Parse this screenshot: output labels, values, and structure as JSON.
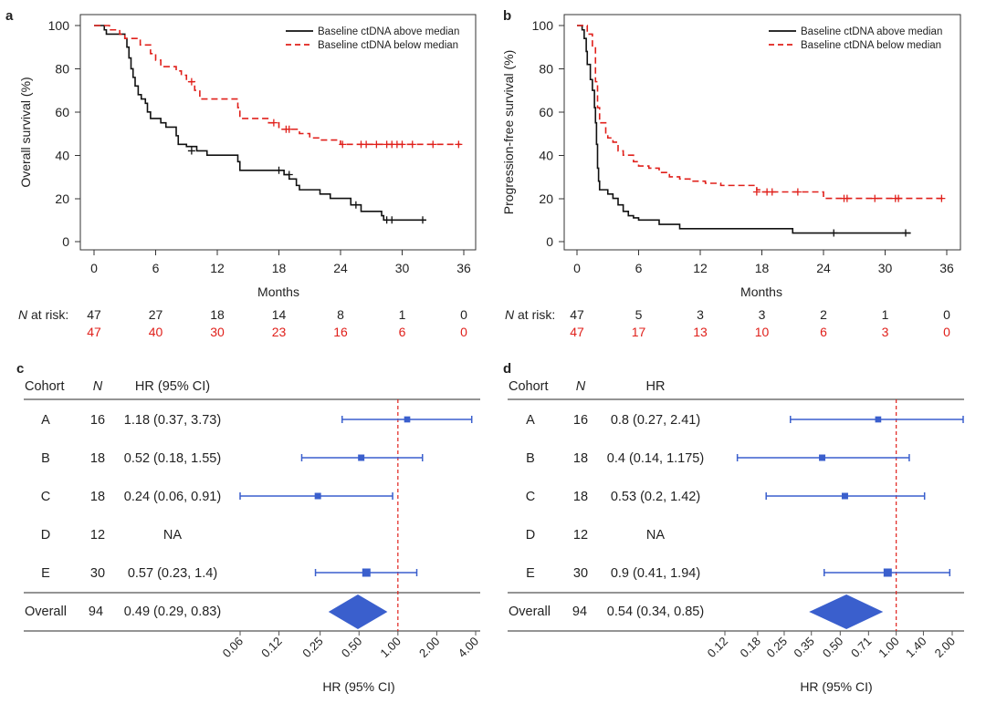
{
  "colors": {
    "above": "#111111",
    "below": "#e0201b",
    "forest": "#3a5fcd",
    "refline": "#e0201b"
  },
  "km": [
    {
      "letter": "a",
      "ylabel": "Overall survival (%)",
      "xlabel": "Months",
      "xticks": [
        "0",
        "6",
        "12",
        "18",
        "24",
        "30",
        "36"
      ],
      "yticks": [
        "0",
        "20",
        "40",
        "60",
        "80",
        "100"
      ],
      "legend": [
        "Baseline ctDNA above median",
        "Baseline ctDNA below median"
      ],
      "risk_label_n": "N",
      "risk_label_rest": " at risk:",
      "risk_above": [
        "47",
        "27",
        "18",
        "14",
        "8",
        "1",
        "0"
      ],
      "risk_below": [
        "47",
        "40",
        "30",
        "23",
        "16",
        "6",
        "0"
      ]
    },
    {
      "letter": "b",
      "ylabel": "Progression-free survival (%)",
      "xlabel": "Months",
      "xticks": [
        "0",
        "6",
        "12",
        "18",
        "24",
        "30",
        "36"
      ],
      "yticks": [
        "0",
        "20",
        "40",
        "60",
        "80",
        "100"
      ],
      "legend": [
        "Baseline ctDNA above median",
        "Baseline ctDNA below median"
      ],
      "risk_label_n": "N",
      "risk_label_rest": " at risk:",
      "risk_above": [
        "47",
        "5",
        "3",
        "3",
        "2",
        "1",
        "0"
      ],
      "risk_below": [
        "47",
        "17",
        "13",
        "10",
        "6",
        "3",
        "0"
      ]
    }
  ],
  "forest": [
    {
      "letter": "c",
      "headers": {
        "cohort": "Cohort",
        "n": "N",
        "hr": "HR (95% CI)"
      },
      "rows": [
        {
          "cohort": "A",
          "n": "16",
          "hr_text": "1.18 (0.37, 3.73)"
        },
        {
          "cohort": "B",
          "n": "18",
          "hr_text": "0.52 (0.18, 1.55)"
        },
        {
          "cohort": "C",
          "n": "18",
          "hr_text": "0.24 (0.06, 0.91)"
        },
        {
          "cohort": "D",
          "n": "12",
          "hr_text": "NA"
        },
        {
          "cohort": "E",
          "n": "30",
          "hr_text": "0.57 (0.23, 1.4)"
        }
      ],
      "overall": {
        "cohort": "Overall",
        "n": "94",
        "hr_text": "0.49 (0.29, 0.83)"
      },
      "xticks": [
        "0.06",
        "0.12",
        "0.25",
        "0.50",
        "1.00",
        "2.00",
        "4.00"
      ],
      "xlabel": "HR (95% CI)"
    },
    {
      "letter": "d",
      "headers": {
        "cohort": "Cohort",
        "n": "N",
        "hr": "HR"
      },
      "rows": [
        {
          "cohort": "A",
          "n": "16",
          "hr_text": "0.8 (0.27, 2.41)"
        },
        {
          "cohort": "B",
          "n": "18",
          "hr_text": "0.4 (0.14, 1.175)"
        },
        {
          "cohort": "C",
          "n": "18",
          "hr_text": "0.53 (0.2, 1.42)"
        },
        {
          "cohort": "D",
          "n": "12",
          "hr_text": "NA"
        },
        {
          "cohort": "E",
          "n": "30",
          "hr_text": "0.9 (0.41, 1.94)"
        }
      ],
      "overall": {
        "cohort": "Overall",
        "n": "94",
        "hr_text": "0.54 (0.34, 0.85)"
      },
      "xticks": [
        "0.12",
        "0.18",
        "0.25",
        "0.35",
        "0.50",
        "0.71",
        "1.00",
        "1.40",
        "2.00"
      ],
      "xlabel": "HR (95% CI)"
    }
  ],
  "chart_data": [
    {
      "type": "line",
      "panel": "a",
      "xlabel": "Months",
      "ylabel": "Overall survival (%)",
      "xlim": [
        0,
        36
      ],
      "ylim": [
        0,
        100
      ],
      "series": [
        {
          "name": "Baseline ctDNA above median",
          "steps": [
            [
              0,
              100
            ],
            [
              1,
              98
            ],
            [
              1.2,
              96
            ],
            [
              3,
              94
            ],
            [
              3.2,
              90
            ],
            [
              3.4,
              85
            ],
            [
              3.6,
              80
            ],
            [
              3.8,
              76
            ],
            [
              4,
              72
            ],
            [
              4.3,
              68
            ],
            [
              4.6,
              66
            ],
            [
              5,
              64
            ],
            [
              5.2,
              60
            ],
            [
              5.5,
              57
            ],
            [
              6.5,
              55
            ],
            [
              7,
              53
            ],
            [
              8,
              49
            ],
            [
              8.2,
              45
            ],
            [
              9,
              44
            ],
            [
              10,
              42
            ],
            [
              11,
              40
            ],
            [
              14,
              37
            ],
            [
              14.2,
              33
            ],
            [
              18.5,
              31
            ],
            [
              19,
              29
            ],
            [
              19.7,
              26
            ],
            [
              20,
              24
            ],
            [
              22,
              22
            ],
            [
              23,
              20
            ],
            [
              25,
              17
            ],
            [
              26,
              14
            ],
            [
              28,
              12
            ],
            [
              28.2,
              10
            ],
            [
              32.3,
              10
            ]
          ],
          "censor": [
            [
              9.5,
              42
            ],
            [
              18,
              33
            ],
            [
              19,
              31
            ],
            [
              25.5,
              17
            ],
            [
              28.5,
              10
            ],
            [
              29,
              10
            ],
            [
              32,
              10
            ]
          ]
        },
        {
          "name": "Baseline ctDNA below median",
          "steps": [
            [
              0,
              100
            ],
            [
              1.5,
              98
            ],
            [
              2.5,
              96
            ],
            [
              3,
              94
            ],
            [
              4.5,
              91
            ],
            [
              5.5,
              87
            ],
            [
              6,
              84
            ],
            [
              6.5,
              81
            ],
            [
              8,
              79
            ],
            [
              8.5,
              77
            ],
            [
              9,
              74
            ],
            [
              9.8,
              70
            ],
            [
              10.3,
              66
            ],
            [
              12,
              66
            ],
            [
              14,
              62
            ],
            [
              14.2,
              57
            ],
            [
              17,
              55
            ],
            [
              18,
              52
            ],
            [
              20,
              50
            ],
            [
              21,
              48
            ],
            [
              22,
              47
            ],
            [
              24,
              45
            ],
            [
              35.7,
              45
            ]
          ],
          "censor": [
            [
              9.5,
              74
            ],
            [
              17.5,
              55
            ],
            [
              18.7,
              52
            ],
            [
              19,
              52
            ],
            [
              24.2,
              45
            ],
            [
              26,
              45
            ],
            [
              26.5,
              45
            ],
            [
              27.5,
              45
            ],
            [
              28.5,
              45
            ],
            [
              29,
              45
            ],
            [
              29.5,
              45
            ],
            [
              30,
              45
            ],
            [
              31,
              45
            ],
            [
              33,
              45
            ],
            [
              35.5,
              45
            ]
          ]
        }
      ]
    },
    {
      "type": "line",
      "panel": "b",
      "xlabel": "Months",
      "ylabel": "Progression-free survival (%)",
      "xlim": [
        0,
        36
      ],
      "ylim": [
        0,
        100
      ],
      "series": [
        {
          "name": "Baseline ctDNA above median",
          "steps": [
            [
              0,
              100
            ],
            [
              0.5,
              98
            ],
            [
              0.7,
              94
            ],
            [
              0.9,
              88
            ],
            [
              1,
              82
            ],
            [
              1.3,
              75
            ],
            [
              1.5,
              70
            ],
            [
              1.7,
              62
            ],
            [
              1.8,
              55
            ],
            [
              1.9,
              45
            ],
            [
              2,
              34
            ],
            [
              2.1,
              28
            ],
            [
              2.2,
              24
            ],
            [
              3,
              22
            ],
            [
              3.5,
              20
            ],
            [
              4,
              17
            ],
            [
              4.5,
              14
            ],
            [
              5,
              12
            ],
            [
              5.5,
              11
            ],
            [
              6,
              10
            ],
            [
              8,
              8
            ],
            [
              10,
              6
            ],
            [
              21,
              4
            ],
            [
              32.5,
              4
            ]
          ],
          "censor": [
            [
              25,
              4
            ],
            [
              32,
              4
            ]
          ]
        },
        {
          "name": "Baseline ctDNA below median",
          "steps": [
            [
              0,
              100
            ],
            [
              1,
              96
            ],
            [
              1.5,
              90
            ],
            [
              1.8,
              74
            ],
            [
              2,
              62
            ],
            [
              2.2,
              55
            ],
            [
              2.8,
              50
            ],
            [
              3,
              48
            ],
            [
              3.5,
              46
            ],
            [
              4,
              42
            ],
            [
              4.5,
              40
            ],
            [
              5.5,
              37
            ],
            [
              6,
              35
            ],
            [
              7,
              34
            ],
            [
              8,
              32
            ],
            [
              9,
              30
            ],
            [
              10,
              29
            ],
            [
              11,
              28
            ],
            [
              12.5,
              27
            ],
            [
              14,
              26
            ],
            [
              17.5,
              24
            ],
            [
              18,
              23
            ],
            [
              24,
              20
            ],
            [
              35.8,
              20
            ]
          ],
          "censor": [
            [
              17.5,
              23
            ],
            [
              18.5,
              23
            ],
            [
              19,
              23
            ],
            [
              21.5,
              23
            ],
            [
              26,
              20
            ],
            [
              26.3,
              20
            ],
            [
              29,
              20
            ],
            [
              31,
              20
            ],
            [
              31.3,
              20
            ],
            [
              35.5,
              20
            ]
          ]
        }
      ]
    },
    {
      "type": "forest",
      "panel": "c",
      "xlabel": "HR (95% CI)",
      "scale": "log",
      "xlim": [
        0.06,
        4.0
      ],
      "reference": 1.0,
      "estimates": [
        {
          "cohort": "A",
          "n": 16,
          "hr": 1.18,
          "lo": 0.37,
          "hi": 3.73
        },
        {
          "cohort": "B",
          "n": 18,
          "hr": 0.52,
          "lo": 0.18,
          "hi": 1.55
        },
        {
          "cohort": "C",
          "n": 18,
          "hr": 0.24,
          "lo": 0.06,
          "hi": 0.91
        },
        {
          "cohort": "D",
          "n": 12,
          "hr": null,
          "lo": null,
          "hi": null
        },
        {
          "cohort": "E",
          "n": 30,
          "hr": 0.57,
          "lo": 0.23,
          "hi": 1.4
        }
      ],
      "overall": {
        "cohort": "Overall",
        "n": 94,
        "hr": 0.49,
        "lo": 0.29,
        "hi": 0.83
      }
    },
    {
      "type": "forest",
      "panel": "d",
      "xlabel": "HR (95% CI)",
      "scale": "log",
      "xlim": [
        0.12,
        2.0
      ],
      "reference": 1.0,
      "estimates": [
        {
          "cohort": "A",
          "n": 16,
          "hr": 0.8,
          "lo": 0.27,
          "hi": 2.41
        },
        {
          "cohort": "B",
          "n": 18,
          "hr": 0.4,
          "lo": 0.14,
          "hi": 1.175
        },
        {
          "cohort": "C",
          "n": 18,
          "hr": 0.53,
          "lo": 0.2,
          "hi": 1.42
        },
        {
          "cohort": "D",
          "n": 12,
          "hr": null,
          "lo": null,
          "hi": null
        },
        {
          "cohort": "E",
          "n": 30,
          "hr": 0.9,
          "lo": 0.41,
          "hi": 1.94
        }
      ],
      "overall": {
        "cohort": "Overall",
        "n": 94,
        "hr": 0.54,
        "lo": 0.34,
        "hi": 0.85
      }
    }
  ]
}
